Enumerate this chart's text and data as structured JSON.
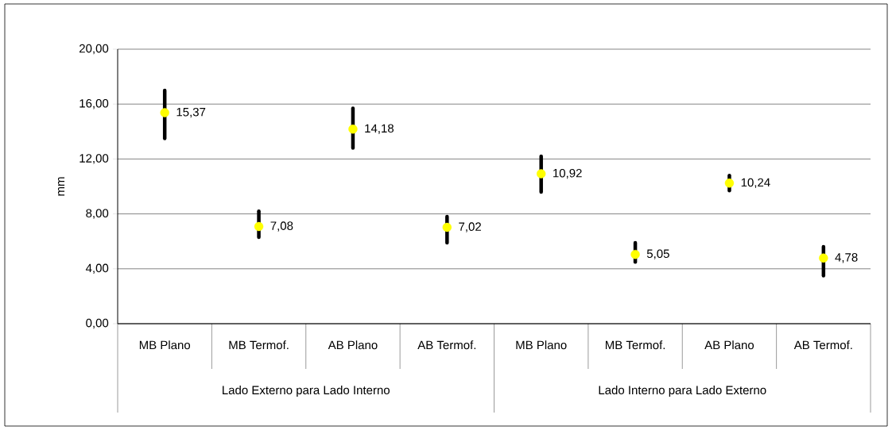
{
  "chart_data": {
    "type": "scatter",
    "ylabel": "mm",
    "categories": [
      "MB Plano",
      "MB Termof.",
      "AB Plano",
      "AB Termof.",
      "MB Plano",
      "MB Termof.",
      "AB Plano",
      "AB Termof."
    ],
    "series": [
      {
        "color": "#ffff00",
        "values": [
          15.37,
          7.08,
          14.18,
          7.02,
          10.92,
          5.05,
          10.24,
          4.78
        ],
        "errors": [
          [
            13.5,
            17.0
          ],
          [
            6.3,
            8.2
          ],
          [
            12.8,
            15.7
          ],
          [
            5.9,
            7.8
          ],
          [
            9.6,
            12.2
          ],
          [
            4.5,
            5.9
          ],
          [
            9.7,
            10.8
          ],
          [
            3.5,
            5.6
          ]
        ],
        "value_labels": [
          "15,37",
          "7,08",
          "14,18",
          "7,02",
          "10,92",
          "5,05",
          "10,24",
          "4,78"
        ]
      }
    ],
    "ylim": [
      0,
      20
    ],
    "yticks": [
      {
        "value": 0,
        "label": "0,00"
      },
      {
        "value": 4,
        "label": "4,00"
      },
      {
        "value": 8,
        "label": "8,00"
      },
      {
        "value": 12,
        "label": "12,00"
      },
      {
        "value": 16,
        "label": "16,00"
      },
      {
        "value": 20,
        "label": "20,00"
      }
    ],
    "annotations": [
      "Lado Externo para Lado Interno",
      "Lado Interno para Lado Externo"
    ],
    "grid": "y",
    "marker": "circle"
  }
}
